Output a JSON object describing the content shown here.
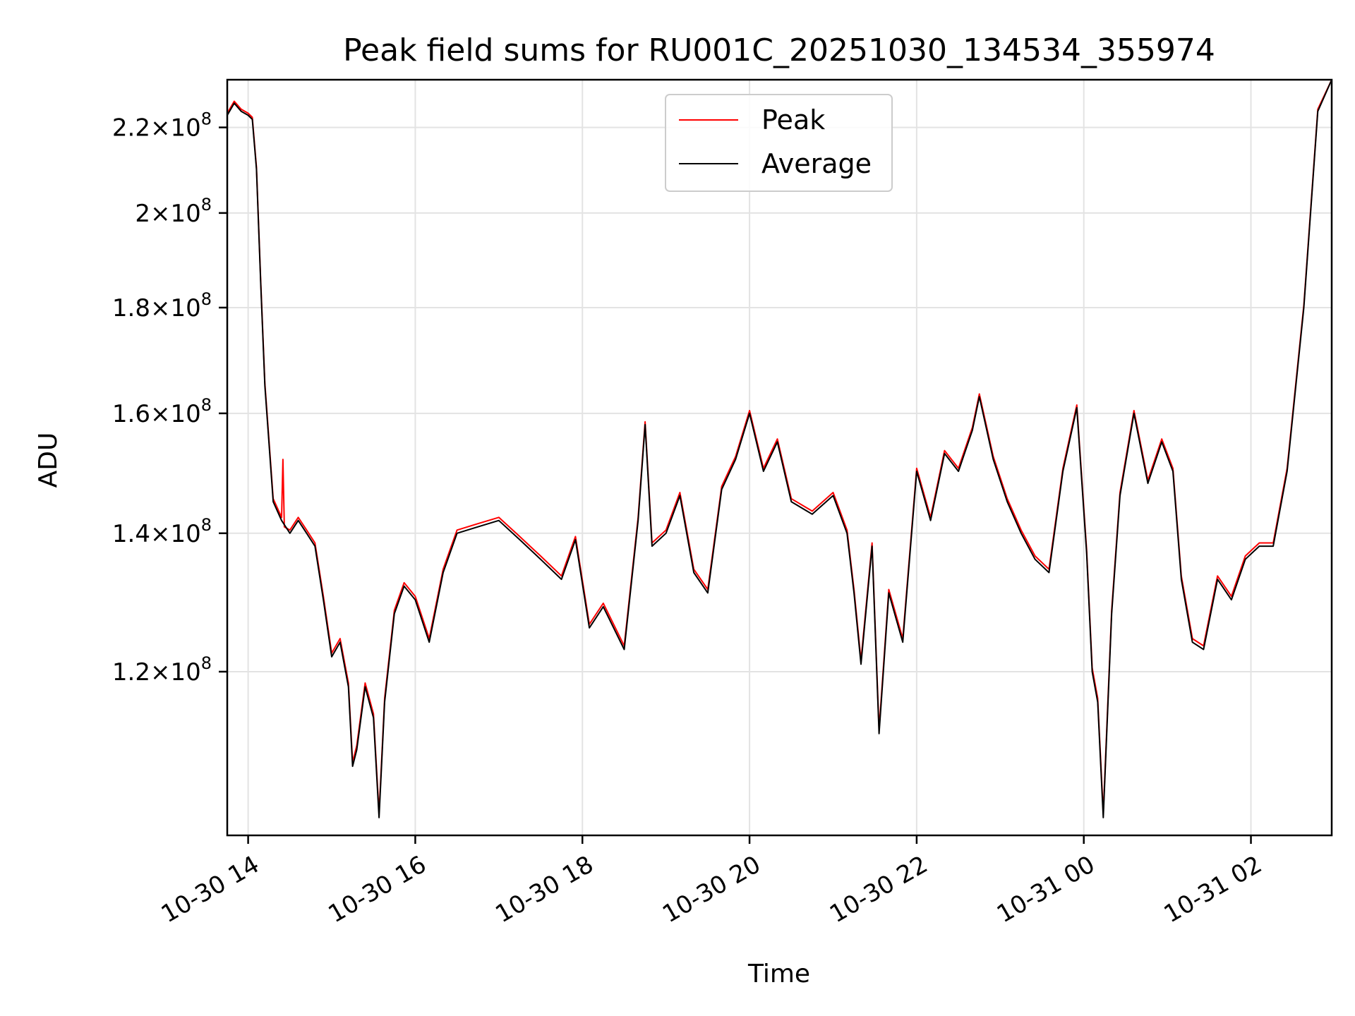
{
  "chart_data": {
    "type": "line",
    "title": "Peak field sums for RU001C_20251030_134534_355974",
    "xlabel": "Time",
    "ylabel": "ADU",
    "y_scale": "log",
    "ylim": [
      100000000,
      232000000
    ],
    "xlim": [
      "2025-10-30 13:45",
      "2025-10-31 02:58"
    ],
    "grid": true,
    "legend_position": "upper center",
    "x_ticks": [
      {
        "value": "2025-10-30 14:00",
        "label": "10-30 14"
      },
      {
        "value": "2025-10-30 16:00",
        "label": "10-30 16"
      },
      {
        "value": "2025-10-30 18:00",
        "label": "10-30 18"
      },
      {
        "value": "2025-10-30 20:00",
        "label": "10-30 20"
      },
      {
        "value": "2025-10-30 22:00",
        "label": "10-30 22"
      },
      {
        "value": "2025-10-31 00:00",
        "label": "10-31 00"
      },
      {
        "value": "2025-10-31 02:00",
        "label": "10-31 02"
      }
    ],
    "y_ticks": [
      {
        "value": 120000000,
        "mantissa": "1.2",
        "base": "10",
        "exp": "8"
      },
      {
        "value": 140000000,
        "mantissa": "1.4",
        "base": "10",
        "exp": "8"
      },
      {
        "value": 160000000,
        "mantissa": "1.6",
        "base": "10",
        "exp": "8"
      },
      {
        "value": 180000000,
        "mantissa": "1.8",
        "base": "10",
        "exp": "8"
      },
      {
        "value": 200000000,
        "mantissa": "2",
        "base": "10",
        "exp": "8"
      },
      {
        "value": 220000000,
        "mantissa": "2.2",
        "base": "10",
        "exp": "8"
      }
    ],
    "series": [
      {
        "name": "Average",
        "color": "#000000",
        "x": [
          "2025-10-30 13:45",
          "2025-10-30 13:50",
          "2025-10-30 13:55",
          "2025-10-30 14:00",
          "2025-10-30 14:03",
          "2025-10-30 14:06",
          "2025-10-30 14:09",
          "2025-10-30 14:12",
          "2025-10-30 14:18",
          "2025-10-30 14:24",
          "2025-10-30 14:30",
          "2025-10-30 14:36",
          "2025-10-30 14:42",
          "2025-10-30 14:48",
          "2025-10-30 14:54",
          "2025-10-30 15:00",
          "2025-10-30 15:06",
          "2025-10-30 15:12",
          "2025-10-30 15:15",
          "2025-10-30 15:18",
          "2025-10-30 15:24",
          "2025-10-30 15:30",
          "2025-10-30 15:34",
          "2025-10-30 15:38",
          "2025-10-30 15:45",
          "2025-10-30 15:52",
          "2025-10-30 16:00",
          "2025-10-30 16:10",
          "2025-10-30 16:20",
          "2025-10-30 16:30",
          "2025-10-30 16:45",
          "2025-10-30 17:00",
          "2025-10-30 17:15",
          "2025-10-30 17:30",
          "2025-10-30 17:45",
          "2025-10-30 17:55",
          "2025-10-30 18:05",
          "2025-10-30 18:15",
          "2025-10-30 18:30",
          "2025-10-30 18:40",
          "2025-10-30 18:45",
          "2025-10-30 18:50",
          "2025-10-30 19:00",
          "2025-10-30 19:10",
          "2025-10-30 19:20",
          "2025-10-30 19:30",
          "2025-10-30 19:40",
          "2025-10-30 19:50",
          "2025-10-30 20:00",
          "2025-10-30 20:10",
          "2025-10-30 20:20",
          "2025-10-30 20:30",
          "2025-10-30 20:45",
          "2025-10-30 21:00",
          "2025-10-30 21:10",
          "2025-10-30 21:15",
          "2025-10-30 21:20",
          "2025-10-30 21:28",
          "2025-10-30 21:33",
          "2025-10-30 21:40",
          "2025-10-30 21:50",
          "2025-10-30 22:00",
          "2025-10-30 22:10",
          "2025-10-30 22:20",
          "2025-10-30 22:30",
          "2025-10-30 22:40",
          "2025-10-30 22:45",
          "2025-10-30 22:55",
          "2025-10-30 23:05",
          "2025-10-30 23:15",
          "2025-10-30 23:25",
          "2025-10-30 23:35",
          "2025-10-30 23:45",
          "2025-10-30 23:55",
          "2025-10-31 00:02",
          "2025-10-31 00:06",
          "2025-10-31 00:10",
          "2025-10-31 00:14",
          "2025-10-31 00:20",
          "2025-10-31 00:26",
          "2025-10-31 00:36",
          "2025-10-31 00:46",
          "2025-10-31 00:56",
          "2025-10-31 01:04",
          "2025-10-31 01:10",
          "2025-10-31 01:18",
          "2025-10-31 01:26",
          "2025-10-31 01:36",
          "2025-10-31 01:46",
          "2025-10-31 01:56",
          "2025-10-31 02:06",
          "2025-10-31 02:16",
          "2025-10-31 02:26",
          "2025-10-31 02:38",
          "2025-10-31 02:48",
          "2025-10-31 02:58"
        ],
        "y": [
          223000000,
          226000000,
          224000000,
          223000000,
          222000000,
          210000000,
          185000000,
          165000000,
          145000000,
          142000000,
          140000000,
          142000000,
          140000000,
          138000000,
          130000000,
          122000000,
          124000000,
          118000000,
          108000000,
          110000000,
          118000000,
          114000000,
          102000000,
          116000000,
          128000000,
          132000000,
          130000000,
          124000000,
          134000000,
          140000000,
          141000000,
          142000000,
          139000000,
          136000000,
          133000000,
          139000000,
          126000000,
          129000000,
          123000000,
          142000000,
          158000000,
          138000000,
          140000000,
          146000000,
          134000000,
          131000000,
          147000000,
          152000000,
          160000000,
          150000000,
          155000000,
          145000000,
          143000000,
          146000000,
          140000000,
          131000000,
          121000000,
          138000000,
          112000000,
          131000000,
          124000000,
          150000000,
          142000000,
          153000000,
          150000000,
          157000000,
          163000000,
          152000000,
          145000000,
          140000000,
          136000000,
          134000000,
          150000000,
          161000000,
          137000000,
          120000000,
          116000000,
          102000000,
          128000000,
          146000000,
          160000000,
          148000000,
          155000000,
          150000000,
          133000000,
          124000000,
          123000000,
          133000000,
          130000000,
          136000000,
          138000000,
          138000000,
          150000000,
          180000000,
          224000000,
          232000000
        ]
      },
      {
        "name": "Peak",
        "color": "#ff0000",
        "x": [
          "2025-10-30 13:45",
          "2025-10-30 13:50",
          "2025-10-30 13:55",
          "2025-10-30 14:00",
          "2025-10-30 14:03",
          "2025-10-30 14:06",
          "2025-10-30 14:09",
          "2025-10-30 14:12",
          "2025-10-30 14:18",
          "2025-10-30 14:24",
          "2025-10-30 14:25",
          "2025-10-30 14:26",
          "2025-10-30 14:30",
          "2025-10-30 14:36",
          "2025-10-30 14:42",
          "2025-10-30 14:48",
          "2025-10-30 14:54",
          "2025-10-30 15:00",
          "2025-10-30 15:06",
          "2025-10-30 15:12",
          "2025-10-30 15:15",
          "2025-10-30 15:18",
          "2025-10-30 15:24",
          "2025-10-30 15:30",
          "2025-10-30 15:34",
          "2025-10-30 15:38",
          "2025-10-30 15:45",
          "2025-10-30 15:52",
          "2025-10-30 16:00",
          "2025-10-30 16:10",
          "2025-10-30 16:20",
          "2025-10-30 16:30",
          "2025-10-30 16:45",
          "2025-10-30 17:00",
          "2025-10-30 17:15",
          "2025-10-30 17:30",
          "2025-10-30 17:45",
          "2025-10-30 17:55",
          "2025-10-30 18:05",
          "2025-10-30 18:15",
          "2025-10-30 18:30",
          "2025-10-30 18:40",
          "2025-10-30 18:45",
          "2025-10-30 18:50",
          "2025-10-30 19:00",
          "2025-10-30 19:10",
          "2025-10-30 19:20",
          "2025-10-30 19:30",
          "2025-10-30 19:40",
          "2025-10-30 19:50",
          "2025-10-30 20:00",
          "2025-10-30 20:10",
          "2025-10-30 20:20",
          "2025-10-30 20:30",
          "2025-10-30 20:45",
          "2025-10-30 21:00",
          "2025-10-30 21:10",
          "2025-10-30 21:15",
          "2025-10-30 21:20",
          "2025-10-30 21:28",
          "2025-10-30 21:33",
          "2025-10-30 21:40",
          "2025-10-30 21:50",
          "2025-10-30 22:00",
          "2025-10-30 22:10",
          "2025-10-30 22:20",
          "2025-10-30 22:30",
          "2025-10-30 22:40",
          "2025-10-30 22:45",
          "2025-10-30 22:55",
          "2025-10-30 23:05",
          "2025-10-30 23:15",
          "2025-10-30 23:25",
          "2025-10-30 23:35",
          "2025-10-30 23:45",
          "2025-10-30 23:55",
          "2025-10-31 00:02",
          "2025-10-31 00:06",
          "2025-10-31 00:10",
          "2025-10-31 00:14",
          "2025-10-31 00:20",
          "2025-10-31 00:26",
          "2025-10-31 00:36",
          "2025-10-31 00:46",
          "2025-10-31 00:56",
          "2025-10-31 01:04",
          "2025-10-31 01:10",
          "2025-10-31 01:18",
          "2025-10-31 01:26",
          "2025-10-31 01:36",
          "2025-10-31 01:46",
          "2025-10-31 01:56",
          "2025-10-31 02:06",
          "2025-10-31 02:16",
          "2025-10-31 02:26",
          "2025-10-31 02:38",
          "2025-10-31 02:48",
          "2025-10-31 02:58"
        ],
        "y": [
          223500000,
          226500000,
          224500000,
          223500000,
          222500000,
          210500000,
          185500000,
          165500000,
          145500000,
          142500000,
          152000000,
          141000000,
          140500000,
          142500000,
          140500000,
          138500000,
          130500000,
          122500000,
          124500000,
          118500000,
          108500000,
          110500000,
          118500000,
          114500000,
          102500000,
          116500000,
          128500000,
          132500000,
          130500000,
          124500000,
          134500000,
          140500000,
          141500000,
          142500000,
          139500000,
          136500000,
          133500000,
          139500000,
          126500000,
          129500000,
          123500000,
          142500000,
          158500000,
          138500000,
          140500000,
          146500000,
          134500000,
          131500000,
          147500000,
          152500000,
          160500000,
          150500000,
          155500000,
          145500000,
          143500000,
          146500000,
          140500000,
          131500000,
          121500000,
          138500000,
          112500000,
          131500000,
          124500000,
          150500000,
          142500000,
          153500000,
          150500000,
          157500000,
          163500000,
          152500000,
          145500000,
          140500000,
          136500000,
          134500000,
          150500000,
          161500000,
          137500000,
          120500000,
          116500000,
          102500000,
          128500000,
          146500000,
          160500000,
          148500000,
          155500000,
          150500000,
          133500000,
          124500000,
          123500000,
          133500000,
          130500000,
          136500000,
          138500000,
          138500000,
          150500000,
          180500000,
          224500000,
          232000000
        ]
      }
    ]
  }
}
